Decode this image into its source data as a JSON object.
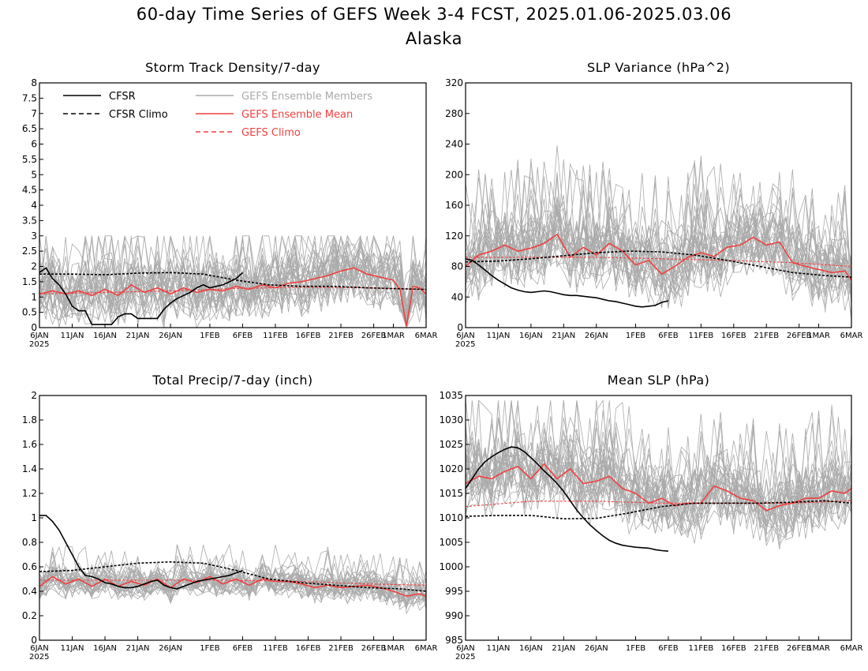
{
  "title": "60-day Time Series of GEFS Week 3-4 FCST, 2025.01.06-2025.03.06",
  "subtitle": "Alaska",
  "colors": {
    "cfsr": "#000000",
    "members": "#aaaaaa",
    "mean": "#f04040",
    "gefs_climo": "#f04040"
  },
  "legend": {
    "cfsr": "CFSR",
    "cfsr_climo": "CFSR Climo",
    "members": "GEFS Ensemble Members",
    "mean": "GEFS Ensemble Mean",
    "gefs_climo": "GEFS Climo"
  },
  "x_ticks": [
    "6JAN",
    "11JAN",
    "16JAN",
    "21JAN",
    "26JAN",
    "1FEB",
    "6FEB",
    "11FEB",
    "16FEB",
    "21FEB",
    "26FEB",
    "1MAR",
    "6MAR"
  ],
  "x_year": "2025",
  "chart_data": [
    {
      "type": "line",
      "title": "Storm Track Density/7-day",
      "ylim": [
        0,
        8
      ],
      "yticks": [
        0,
        0.5,
        1,
        1.5,
        2,
        2.5,
        3,
        3.5,
        4,
        4.5,
        5,
        5.5,
        6,
        6.5,
        7,
        7.5,
        8
      ],
      "member_spread": [
        0.15,
        0.85,
        3.0
      ],
      "series": [
        {
          "key": "cfsr",
          "x": [
            0,
            1,
            2,
            3,
            4,
            5,
            6,
            7,
            8,
            9,
            10,
            11,
            12,
            13,
            14,
            15,
            16,
            17,
            18,
            19,
            20,
            21,
            22,
            23,
            24,
            25,
            26,
            27,
            28,
            29,
            30,
            31
          ],
          "y": [
            1.8,
            1.95,
            1.6,
            1.4,
            1.1,
            0.7,
            0.55,
            0.55,
            0.1,
            0.1,
            0.1,
            0.1,
            0.35,
            0.45,
            0.45,
            0.3,
            0.3,
            0.3,
            0.3,
            0.6,
            0.8,
            0.95,
            1.05,
            1.15,
            1.3,
            1.4,
            1.3,
            1.35,
            1.4,
            1.5,
            1.6,
            1.8
          ]
        },
        {
          "key": "cfsr_climo",
          "x": [
            0,
            5,
            10,
            15,
            20,
            25,
            30,
            35,
            40,
            45,
            50,
            55,
            59
          ],
          "y": [
            1.75,
            1.75,
            1.73,
            1.78,
            1.8,
            1.75,
            1.55,
            1.4,
            1.35,
            1.35,
            1.3,
            1.27,
            1.25
          ]
        },
        {
          "key": "mean",
          "x": [
            0,
            2,
            4,
            6,
            8,
            10,
            12,
            14,
            16,
            18,
            20,
            22,
            24,
            26,
            28,
            30,
            32,
            34,
            36,
            38,
            40,
            42,
            44,
            46,
            48,
            50,
            52,
            54,
            55,
            56,
            57,
            58,
            59
          ],
          "y": [
            1.1,
            1.2,
            1.1,
            1.2,
            1.05,
            1.25,
            1.05,
            1.4,
            1.15,
            1.3,
            1.1,
            1.3,
            1.15,
            1.25,
            1.2,
            1.35,
            1.25,
            1.4,
            1.3,
            1.45,
            1.5,
            1.6,
            1.7,
            1.85,
            1.95,
            1.75,
            1.65,
            1.55,
            1.25,
            0.05,
            1.35,
            1.3,
            1.1
          ]
        },
        {
          "key": "gefs_climo",
          "x": [
            0,
            10,
            20,
            30,
            40,
            50,
            59
          ],
          "y": [
            1.1,
            1.15,
            1.2,
            1.28,
            1.32,
            1.3,
            1.25
          ]
        }
      ]
    },
    {
      "type": "line",
      "title": "SLP Variance (hPa^2)",
      "ylim": [
        0,
        320
      ],
      "yticks": [
        0,
        40,
        80,
        120,
        160,
        200,
        240,
        280,
        320
      ],
      "member_spread": [
        45,
        40,
        300
      ],
      "series": [
        {
          "key": "cfsr",
          "x": [
            0,
            1,
            2,
            3,
            4,
            5,
            6,
            7,
            8,
            9,
            10,
            11,
            12,
            13,
            14,
            15,
            16,
            17,
            18,
            19,
            20,
            21,
            22,
            23,
            24,
            25,
            26,
            27,
            28,
            29,
            30,
            31
          ],
          "y": [
            90,
            88,
            82,
            75,
            68,
            62,
            57,
            52,
            49,
            47,
            46,
            47,
            48,
            47,
            45,
            43,
            42,
            42,
            41,
            40,
            39,
            37,
            35,
            34,
            32,
            30,
            28,
            27,
            28,
            29,
            33,
            35
          ]
        },
        {
          "key": "cfsr_climo",
          "x": [
            0,
            5,
            10,
            15,
            20,
            25,
            30,
            35,
            40,
            45,
            50,
            55,
            59
          ],
          "y": [
            86,
            87,
            90,
            94,
            98,
            100,
            99,
            95,
            88,
            80,
            72,
            68,
            66
          ]
        },
        {
          "key": "mean",
          "x": [
            0,
            2,
            4,
            6,
            8,
            10,
            12,
            14,
            16,
            18,
            20,
            22,
            24,
            26,
            28,
            30,
            32,
            34,
            36,
            38,
            40,
            42,
            44,
            46,
            48,
            50,
            52,
            54,
            56,
            58,
            59
          ],
          "y": [
            80,
            95,
            100,
            108,
            100,
            104,
            110,
            122,
            92,
            105,
            95,
            110,
            100,
            82,
            88,
            70,
            80,
            92,
            98,
            93,
            105,
            108,
            118,
            108,
            112,
            85,
            80,
            76,
            72,
            74,
            62
          ]
        },
        {
          "key": "gefs_climo",
          "x": [
            0,
            10,
            20,
            30,
            40,
            50,
            59
          ],
          "y": [
            92,
            92,
            92,
            90,
            88,
            85,
            80
          ]
        }
      ]
    },
    {
      "type": "line",
      "title": "Total Precip/7-day (inch)",
      "ylim": [
        0,
        2
      ],
      "yticks": [
        0,
        0.2,
        0.4,
        0.6,
        0.8,
        1,
        1.2,
        1.4,
        1.6,
        1.8,
        2
      ],
      "member_spread": [
        0.14,
        0.1,
        1.43
      ],
      "series": [
        {
          "key": "cfsr",
          "x": [
            0,
            1,
            2,
            3,
            4,
            5,
            6,
            7,
            8,
            9,
            10,
            11,
            12,
            13,
            14,
            15,
            16,
            17,
            18,
            19,
            20,
            21,
            22,
            23,
            24,
            25,
            26,
            27,
            28,
            29,
            30,
            31
          ],
          "y": [
            1.02,
            1.02,
            0.97,
            0.9,
            0.8,
            0.7,
            0.6,
            0.53,
            0.52,
            0.5,
            0.47,
            0.46,
            0.44,
            0.43,
            0.43,
            0.44,
            0.46,
            0.48,
            0.49,
            0.45,
            0.43,
            0.42,
            0.44,
            0.46,
            0.48,
            0.49,
            0.5,
            0.51,
            0.52,
            0.53,
            0.55,
            0.57
          ]
        },
        {
          "key": "cfsr_climo",
          "x": [
            0,
            5,
            10,
            15,
            20,
            25,
            30,
            35,
            40,
            45,
            50,
            55,
            59
          ],
          "y": [
            0.56,
            0.57,
            0.6,
            0.63,
            0.64,
            0.63,
            0.57,
            0.5,
            0.47,
            0.45,
            0.43,
            0.42,
            0.4
          ]
        },
        {
          "key": "mean",
          "x": [
            0,
            2,
            4,
            6,
            8,
            10,
            12,
            14,
            16,
            18,
            20,
            22,
            24,
            26,
            28,
            30,
            32,
            34,
            36,
            38,
            40,
            42,
            44,
            46,
            48,
            50,
            52,
            54,
            56,
            58,
            59
          ],
          "y": [
            0.44,
            0.52,
            0.46,
            0.5,
            0.44,
            0.5,
            0.44,
            0.48,
            0.45,
            0.5,
            0.43,
            0.5,
            0.47,
            0.52,
            0.46,
            0.5,
            0.45,
            0.5,
            0.48,
            0.48,
            0.46,
            0.43,
            0.45,
            0.43,
            0.44,
            0.45,
            0.43,
            0.4,
            0.36,
            0.38,
            0.36
          ]
        },
        {
          "key": "gefs_climo",
          "x": [
            0,
            10,
            20,
            30,
            40,
            50,
            59
          ],
          "y": [
            0.49,
            0.49,
            0.49,
            0.49,
            0.48,
            0.46,
            0.45
          ]
        }
      ]
    },
    {
      "type": "line",
      "title": "Mean SLP (hPa)",
      "ylim": [
        985,
        1035
      ],
      "yticks": [
        985,
        990,
        995,
        1000,
        1005,
        1010,
        1015,
        1020,
        1025,
        1030,
        1035
      ],
      "member_spread": [
        1016,
        6,
        1034
      ],
      "series": [
        {
          "key": "cfsr",
          "x": [
            0,
            1,
            2,
            3,
            4,
            5,
            6,
            7,
            8,
            9,
            10,
            11,
            12,
            13,
            14,
            15,
            16,
            17,
            18,
            19,
            20,
            21,
            22,
            23,
            24,
            25,
            26,
            27,
            28,
            29,
            30,
            31
          ],
          "y": [
            1016,
            1018,
            1020,
            1021.5,
            1022.5,
            1023.3,
            1024,
            1024.5,
            1024.3,
            1023.5,
            1022.3,
            1021,
            1019.6,
            1018.4,
            1017,
            1015.4,
            1013.5,
            1011.6,
            1010,
            1008.6,
            1007.4,
            1006.3,
            1005.4,
            1004.8,
            1004.4,
            1004.2,
            1004,
            1003.9,
            1003.8,
            1003.5,
            1003.3,
            1003.2
          ]
        },
        {
          "key": "cfsr_climo",
          "x": [
            0,
            5,
            10,
            15,
            20,
            25,
            30,
            35,
            40,
            45,
            50,
            55,
            59
          ],
          "y": [
            1010.3,
            1010.5,
            1010.5,
            1009.8,
            1009.9,
            1011,
            1012.3,
            1013,
            1013,
            1013,
            1013.2,
            1013.5,
            1013
          ]
        },
        {
          "key": "mean",
          "x": [
            0,
            2,
            4,
            6,
            8,
            10,
            12,
            14,
            16,
            18,
            20,
            22,
            24,
            26,
            28,
            30,
            32,
            34,
            36,
            38,
            40,
            42,
            44,
            46,
            48,
            50,
            52,
            54,
            56,
            58,
            59
          ],
          "y": [
            1017,
            1018.5,
            1018,
            1019.5,
            1020.5,
            1018,
            1021,
            1018,
            1020,
            1017,
            1017.5,
            1018.5,
            1016,
            1015,
            1013,
            1014,
            1012.5,
            1013,
            1013,
            1016.5,
            1015.5,
            1014,
            1013.5,
            1011.5,
            1012.5,
            1013,
            1014,
            1014,
            1015.5,
            1015,
            1016
          ]
        },
        {
          "key": "gefs_climo",
          "x": [
            0,
            10,
            20,
            30,
            40,
            50,
            59
          ],
          "y": [
            1012.3,
            1013.4,
            1013.4,
            1013,
            1013,
            1013,
            1013.5
          ]
        }
      ]
    }
  ]
}
